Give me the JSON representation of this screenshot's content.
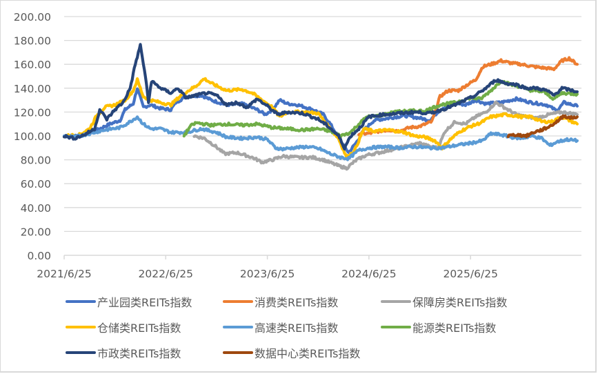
{
  "chart_data": {
    "type": "line",
    "title": "",
    "xlabel": "",
    "ylabel": "",
    "ylim": [
      0,
      200
    ],
    "yticks": [
      "0.00",
      "20.00",
      "40.00",
      "60.00",
      "80.00",
      "100.00",
      "120.00",
      "140.00",
      "160.00",
      "180.00",
      "200.00"
    ],
    "xticks": [
      "2021/6/25",
      "2022/6/25",
      "2023/6/25",
      "2024/6/25",
      "2025/6/25"
    ],
    "x_unit": "years since 2021/6/25",
    "grid": true,
    "legend_position": "bottom",
    "series": [
      {
        "name": "产业园类REITs指数",
        "color": "#4472C4",
        "points": [
          [
            0,
            100
          ],
          [
            0.15,
            100
          ],
          [
            0.3,
            104
          ],
          [
            0.45,
            110
          ],
          [
            0.55,
            113
          ],
          [
            0.6,
            122
          ],
          [
            0.68,
            127
          ],
          [
            0.72,
            140
          ],
          [
            0.78,
            124
          ],
          [
            0.85,
            126
          ],
          [
            0.95,
            123
          ],
          [
            1.05,
            122
          ],
          [
            1.1,
            128
          ],
          [
            1.2,
            133
          ],
          [
            1.35,
            134
          ],
          [
            1.45,
            130
          ],
          [
            1.6,
            126
          ],
          [
            1.75,
            127
          ],
          [
            1.9,
            122
          ],
          [
            1.98,
            118
          ],
          [
            2.05,
            122
          ],
          [
            2.12,
            130
          ],
          [
            2.2,
            127
          ],
          [
            2.3,
            126
          ],
          [
            2.45,
            122
          ],
          [
            2.55,
            118
          ],
          [
            2.62,
            110
          ],
          [
            2.72,
            96
          ],
          [
            2.8,
            86
          ],
          [
            2.88,
            95
          ],
          [
            2.95,
            105
          ],
          [
            3.05,
            113
          ],
          [
            3.2,
            115
          ],
          [
            3.35,
            117
          ],
          [
            3.5,
            115
          ],
          [
            3.6,
            113
          ],
          [
            3.7,
            122
          ],
          [
            3.82,
            128
          ],
          [
            3.95,
            126
          ],
          [
            4.05,
            130
          ],
          [
            4.15,
            127
          ],
          [
            4.3,
            128
          ],
          [
            4.45,
            131
          ],
          [
            4.6,
            128
          ],
          [
            4.75,
            126
          ],
          [
            4.85,
            121
          ],
          [
            4.92,
            128
          ],
          [
            5.05,
            125
          ]
        ]
      },
      {
        "name": "消费类REITs指数",
        "color": "#ED7D31",
        "points": [
          [
            2.9,
            102
          ],
          [
            3.0,
            102
          ],
          [
            3.1,
            104
          ],
          [
            3.2,
            105
          ],
          [
            3.3,
            104
          ],
          [
            3.4,
            107
          ],
          [
            3.5,
            108
          ],
          [
            3.62,
            112
          ],
          [
            3.7,
            133
          ],
          [
            3.78,
            138
          ],
          [
            3.88,
            138
          ],
          [
            3.95,
            142
          ],
          [
            4.05,
            147
          ],
          [
            4.12,
            158
          ],
          [
            4.2,
            160
          ],
          [
            4.3,
            163
          ],
          [
            4.4,
            161
          ],
          [
            4.5,
            160
          ],
          [
            4.62,
            158
          ],
          [
            4.72,
            157
          ],
          [
            4.82,
            156
          ],
          [
            4.9,
            163
          ],
          [
            4.97,
            165
          ],
          [
            5.05,
            160
          ]
        ]
      },
      {
        "name": "保障房类REITs指数",
        "color": "#A5A5A5",
        "points": [
          [
            1.28,
            100
          ],
          [
            1.38,
            98
          ],
          [
            1.48,
            92
          ],
          [
            1.58,
            85
          ],
          [
            1.7,
            86
          ],
          [
            1.85,
            82
          ],
          [
            1.95,
            78
          ],
          [
            2.05,
            80
          ],
          [
            2.15,
            83
          ],
          [
            2.3,
            82
          ],
          [
            2.45,
            82
          ],
          [
            2.55,
            80
          ],
          [
            2.7,
            75
          ],
          [
            2.78,
            73
          ],
          [
            2.88,
            80
          ],
          [
            2.98,
            84
          ],
          [
            3.1,
            86
          ],
          [
            3.25,
            89
          ],
          [
            3.4,
            92
          ],
          [
            3.5,
            94
          ],
          [
            3.6,
            91
          ],
          [
            3.68,
            90
          ],
          [
            3.75,
            104
          ],
          [
            3.85,
            112
          ],
          [
            3.95,
            110
          ],
          [
            4.05,
            116
          ],
          [
            4.15,
            120
          ],
          [
            4.25,
            128
          ],
          [
            4.33,
            124
          ],
          [
            4.45,
            118
          ],
          [
            4.55,
            116
          ],
          [
            4.65,
            115
          ],
          [
            4.78,
            118
          ],
          [
            4.9,
            120
          ],
          [
            5.05,
            118
          ]
        ]
      },
      {
        "name": "仓储类REITs指数",
        "color": "#FFC000",
        "points": [
          [
            0,
            100
          ],
          [
            0.15,
            101
          ],
          [
            0.25,
            106
          ],
          [
            0.32,
            117
          ],
          [
            0.4,
            124
          ],
          [
            0.5,
            126
          ],
          [
            0.6,
            130
          ],
          [
            0.68,
            138
          ],
          [
            0.72,
            147
          ],
          [
            0.78,
            133
          ],
          [
            0.85,
            130
          ],
          [
            0.95,
            128
          ],
          [
            1.05,
            126
          ],
          [
            1.15,
            134
          ],
          [
            1.3,
            142
          ],
          [
            1.38,
            148
          ],
          [
            1.45,
            144
          ],
          [
            1.6,
            138
          ],
          [
            1.75,
            139
          ],
          [
            1.85,
            136
          ],
          [
            1.95,
            130
          ],
          [
            2.05,
            124
          ],
          [
            2.12,
            116
          ],
          [
            2.2,
            120
          ],
          [
            2.35,
            120
          ],
          [
            2.5,
            119
          ],
          [
            2.6,
            108
          ],
          [
            2.7,
            98
          ],
          [
            2.78,
            82
          ],
          [
            2.86,
            88
          ],
          [
            2.95,
            106
          ],
          [
            3.05,
            104
          ],
          [
            3.2,
            105
          ],
          [
            3.35,
            103
          ],
          [
            3.45,
            100
          ],
          [
            3.55,
            99
          ],
          [
            3.65,
            96
          ],
          [
            3.72,
            90
          ],
          [
            3.8,
            97
          ],
          [
            3.9,
            104
          ],
          [
            4.0,
            108
          ],
          [
            4.1,
            111
          ],
          [
            4.2,
            116
          ],
          [
            4.35,
            118
          ],
          [
            4.5,
            116
          ],
          [
            4.6,
            116
          ],
          [
            4.7,
            112
          ],
          [
            4.8,
            112
          ],
          [
            4.9,
            116
          ],
          [
            5.05,
            110
          ]
        ]
      },
      {
        "name": "高速类REITs指数",
        "color": "#5B9BD5",
        "points": [
          [
            0,
            100
          ],
          [
            0.1,
            99
          ],
          [
            0.25,
            102
          ],
          [
            0.4,
            105
          ],
          [
            0.55,
            107
          ],
          [
            0.65,
            112
          ],
          [
            0.72,
            116
          ],
          [
            0.78,
            110
          ],
          [
            0.85,
            106
          ],
          [
            0.95,
            106
          ],
          [
            1.05,
            103
          ],
          [
            1.2,
            103
          ],
          [
            1.35,
            106
          ],
          [
            1.5,
            103
          ],
          [
            1.6,
            99
          ],
          [
            1.75,
            98
          ],
          [
            1.9,
            99
          ],
          [
            2.0,
            97
          ],
          [
            2.08,
            90
          ],
          [
            2.15,
            89
          ],
          [
            2.25,
            90
          ],
          [
            2.4,
            91
          ],
          [
            2.52,
            89
          ],
          [
            2.62,
            85
          ],
          [
            2.72,
            82
          ],
          [
            2.8,
            81
          ],
          [
            2.9,
            88
          ],
          [
            3.0,
            90
          ],
          [
            3.15,
            91
          ],
          [
            3.3,
            90
          ],
          [
            3.45,
            91
          ],
          [
            3.6,
            90
          ],
          [
            3.72,
            90
          ],
          [
            3.85,
            92
          ],
          [
            4.0,
            94
          ],
          [
            4.12,
            96
          ],
          [
            4.2,
            102
          ],
          [
            4.3,
            101
          ],
          [
            4.4,
            99
          ],
          [
            4.5,
            98
          ],
          [
            4.6,
            100
          ],
          [
            4.7,
            98
          ],
          [
            4.78,
            92
          ],
          [
            4.85,
            95
          ],
          [
            4.95,
            97
          ],
          [
            5.05,
            96
          ]
        ]
      },
      {
        "name": "能源类REITs指数",
        "color": "#70AD47",
        "points": [
          [
            1.18,
            100
          ],
          [
            1.24,
            108
          ],
          [
            1.3,
            111
          ],
          [
            1.45,
            109
          ],
          [
            1.6,
            110
          ],
          [
            1.75,
            109
          ],
          [
            1.9,
            110
          ],
          [
            2.05,
            107
          ],
          [
            2.2,
            106
          ],
          [
            2.35,
            105
          ],
          [
            2.5,
            106
          ],
          [
            2.62,
            104
          ],
          [
            2.72,
            100
          ],
          [
            2.82,
            103
          ],
          [
            2.9,
            110
          ],
          [
            2.98,
            116
          ],
          [
            3.1,
            117
          ],
          [
            3.25,
            120
          ],
          [
            3.4,
            121
          ],
          [
            3.55,
            121
          ],
          [
            3.7,
            126
          ],
          [
            3.85,
            128
          ],
          [
            4.0,
            132
          ],
          [
            4.1,
            131
          ],
          [
            4.2,
            138
          ],
          [
            4.3,
            146
          ],
          [
            4.4,
            143
          ],
          [
            4.5,
            141
          ],
          [
            4.6,
            138
          ],
          [
            4.72,
            137
          ],
          [
            4.82,
            131
          ],
          [
            4.9,
            136
          ],
          [
            5.05,
            135
          ]
        ]
      },
      {
        "name": "市政类REITs指数",
        "color": "#264478",
        "points": [
          [
            0,
            100
          ],
          [
            0.1,
            98
          ],
          [
            0.2,
            101
          ],
          [
            0.3,
            106
          ],
          [
            0.35,
            122
          ],
          [
            0.42,
            114
          ],
          [
            0.5,
            122
          ],
          [
            0.58,
            128
          ],
          [
            0.65,
            140
          ],
          [
            0.7,
            160
          ],
          [
            0.75,
            176
          ],
          [
            0.8,
            150
          ],
          [
            0.83,
            128
          ],
          [
            0.86,
            146
          ],
          [
            0.95,
            140
          ],
          [
            1.05,
            136
          ],
          [
            1.12,
            140
          ],
          [
            1.2,
            132
          ],
          [
            1.3,
            134
          ],
          [
            1.4,
            136
          ],
          [
            1.5,
            134
          ],
          [
            1.6,
            126
          ],
          [
            1.7,
            128
          ],
          [
            1.8,
            124
          ],
          [
            1.9,
            131
          ],
          [
            2.0,
            125
          ],
          [
            2.1,
            118
          ],
          [
            2.2,
            120
          ],
          [
            2.35,
            119
          ],
          [
            2.5,
            114
          ],
          [
            2.6,
            108
          ],
          [
            2.7,
            100
          ],
          [
            2.76,
            90
          ],
          [
            2.82,
            100
          ],
          [
            2.9,
            106
          ],
          [
            3.0,
            116
          ],
          [
            3.15,
            118
          ],
          [
            3.3,
            119
          ],
          [
            3.45,
            120
          ],
          [
            3.6,
            119
          ],
          [
            3.72,
            122
          ],
          [
            3.85,
            126
          ],
          [
            3.95,
            130
          ],
          [
            4.05,
            134
          ],
          [
            4.15,
            140
          ],
          [
            4.25,
            147
          ],
          [
            4.35,
            144
          ],
          [
            4.45,
            143
          ],
          [
            4.55,
            140
          ],
          [
            4.65,
            140
          ],
          [
            4.75,
            138
          ],
          [
            4.82,
            134
          ],
          [
            4.9,
            140
          ],
          [
            5.05,
            137
          ]
        ]
      },
      {
        "name": "数据中心类REITs指数",
        "color": "#9E480E",
        "points": [
          [
            4.37,
            100
          ],
          [
            4.45,
            101
          ],
          [
            4.55,
            100
          ],
          [
            4.62,
            103
          ],
          [
            4.7,
            105
          ],
          [
            4.78,
            108
          ],
          [
            4.85,
            112
          ],
          [
            4.92,
            117
          ],
          [
            4.98,
            115
          ],
          [
            5.05,
            116
          ]
        ]
      }
    ]
  },
  "legend": [
    {
      "label": "产业园类REITs指数",
      "color": "#4472C4"
    },
    {
      "label": "消费类REITs指数",
      "color": "#ED7D31"
    },
    {
      "label": "保障房类REITs指数",
      "color": "#A5A5A5"
    },
    {
      "label": "仓储类REITs指数",
      "color": "#FFC000"
    },
    {
      "label": "高速类REITs指数",
      "color": "#5B9BD5"
    },
    {
      "label": "能源类REITs指数",
      "color": "#70AD47"
    },
    {
      "label": "市政类REITs指数",
      "color": "#264478"
    },
    {
      "label": "数据中心类REITs指数",
      "color": "#9E480E"
    }
  ]
}
